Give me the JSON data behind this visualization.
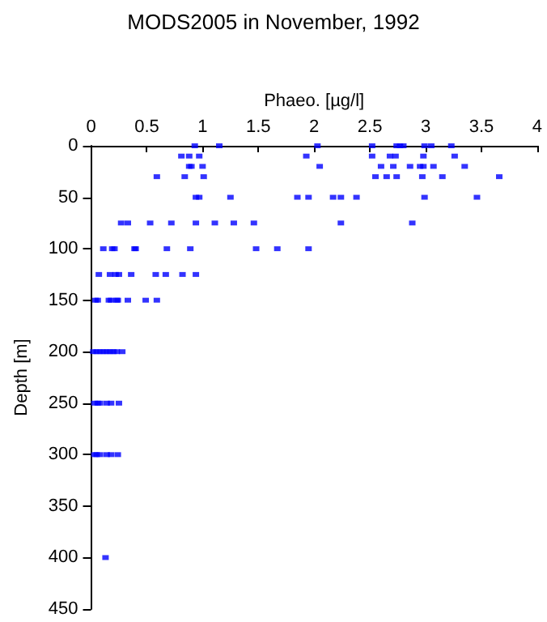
{
  "chart_data": {
    "type": "scatter",
    "title": "MODS2005 in November, 1992",
    "xlabel": "Phaeo. [µg/l]",
    "ylabel": "Depth [m]",
    "xlim": [
      0,
      4
    ],
    "xticks": [
      0,
      0.5,
      1,
      1.5,
      2,
      2.5,
      3,
      3.5,
      4
    ],
    "ylim": [
      450,
      0
    ],
    "yticks": [
      0,
      50,
      100,
      150,
      200,
      250,
      300,
      350,
      400,
      450
    ],
    "grid": false,
    "marker": "square",
    "series": [
      {
        "color": "#0000ff",
        "x": [
          0.93,
          1.15,
          2.03,
          2.52,
          2.74,
          2.77,
          2.8,
          2.99,
          3.05,
          3.23,
          0.81,
          0.88,
          0.97,
          1.93,
          2.52,
          2.68,
          2.73,
          2.98,
          3.26,
          0.88,
          0.9,
          1.0,
          2.05,
          2.6,
          2.71,
          2.86,
          2.95,
          2.98,
          3.07,
          3.35,
          0.59,
          0.84,
          1.01,
          2.55,
          2.65,
          2.74,
          2.97,
          3.15,
          3.66,
          0.94,
          0.97,
          1.25,
          1.85,
          1.95,
          2.17,
          2.24,
          2.38,
          2.99,
          3.46,
          0.27,
          0.33,
          0.53,
          0.72,
          0.94,
          1.11,
          1.28,
          1.46,
          2.24,
          2.88,
          0.11,
          0.19,
          0.21,
          0.39,
          0.4,
          0.68,
          0.89,
          1.48,
          1.67,
          1.95,
          0.07,
          0.17,
          0.22,
          0.25,
          0.36,
          0.58,
          0.67,
          0.82,
          0.94,
          0.04,
          0.06,
          0.16,
          0.18,
          0.23,
          0.24,
          0.33,
          0.49,
          0.59,
          0.02,
          0.05,
          0.08,
          0.11,
          0.14,
          0.17,
          0.2,
          0.23,
          0.28,
          0.03,
          0.06,
          0.08,
          0.14,
          0.18,
          0.25,
          0.03,
          0.05,
          0.08,
          0.14,
          0.18,
          0.24,
          0.13
        ],
        "values": [
          0,
          0,
          0,
          0,
          0,
          0,
          0,
          0,
          0,
          0,
          10,
          10,
          10,
          10,
          10,
          10,
          10,
          10,
          10,
          20,
          20,
          20,
          20,
          20,
          20,
          20,
          20,
          20,
          20,
          20,
          30,
          30,
          30,
          30,
          30,
          30,
          30,
          30,
          30,
          50,
          50,
          50,
          50,
          50,
          50,
          50,
          50,
          50,
          50,
          75,
          75,
          75,
          75,
          75,
          75,
          75,
          75,
          75,
          75,
          100,
          100,
          100,
          100,
          100,
          100,
          100,
          100,
          100,
          100,
          125,
          125,
          125,
          125,
          125,
          125,
          125,
          125,
          125,
          150,
          150,
          150,
          150,
          150,
          150,
          150,
          150,
          150,
          200,
          200,
          200,
          200,
          200,
          200,
          200,
          200,
          200,
          250,
          250,
          250,
          250,
          250,
          250,
          300,
          300,
          300,
          300,
          300,
          300,
          400
        ]
      }
    ]
  }
}
